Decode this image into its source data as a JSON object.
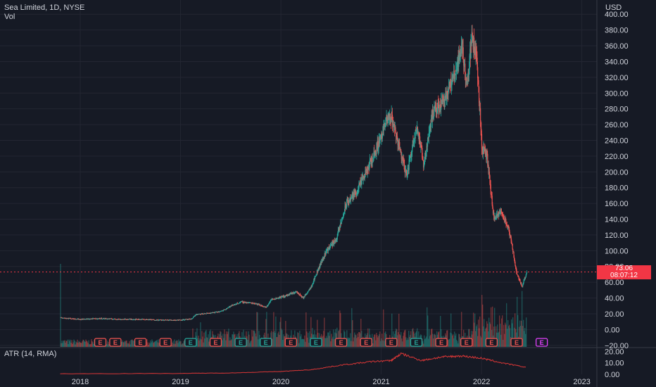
{
  "header": {
    "symbol_line": "Sea Limited, 1D, NYSE",
    "volume_label": "Vol",
    "currency": "USD"
  },
  "price_tag": {
    "price": "73.06",
    "countdown": "08:07:12",
    "color": "#f23645"
  },
  "colors": {
    "background": "#161a25",
    "grid": "#232632",
    "up": "#26a69a",
    "down": "#ef5350",
    "atr_line": "#d93636",
    "text": "#b2b5be"
  },
  "atr": {
    "label": "ATR (14, RMA)",
    "y_ticks": [
      "20.00",
      "10.00",
      "0.00"
    ]
  },
  "earnings_markers": {
    "label": "E",
    "x_dates": [
      2018.2,
      2018.35,
      2018.6,
      2018.85,
      2019.1,
      2019.35,
      2019.6,
      2019.85,
      2020.1,
      2020.35,
      2020.6,
      2020.85,
      2021.1,
      2021.35,
      2021.6,
      2021.85,
      2022.1,
      2022.35,
      2022.6
    ],
    "up_flags": [
      false,
      false,
      false,
      false,
      true,
      false,
      true,
      true,
      false,
      true,
      false,
      false,
      false,
      true,
      false,
      false,
      false,
      false,
      true
    ],
    "future_index": 18
  },
  "chart_data": [
    {
      "type": "candlestick",
      "title": "Sea Limited, 1D, NYSE",
      "ylabel": "USD",
      "x_ticks": [
        "2018",
        "2019",
        "2020",
        "2021",
        "2022",
        "2023"
      ],
      "x_tick_values": [
        2018,
        2019,
        2020,
        2021,
        2022,
        2023
      ],
      "y_ticks": [
        "400.00",
        "380.00",
        "360.00",
        "340.00",
        "320.00",
        "300.00",
        "280.00",
        "260.00",
        "240.00",
        "220.00",
        "200.00",
        "180.00",
        "160.00",
        "140.00",
        "120.00",
        "100.00",
        "80.00",
        "60.00",
        "40.00",
        "20.00",
        "0.00",
        "−20.00"
      ],
      "y_tick_values": [
        400,
        380,
        360,
        340,
        320,
        300,
        280,
        260,
        240,
        220,
        200,
        180,
        160,
        140,
        120,
        100,
        80,
        60,
        40,
        20,
        0,
        -20
      ],
      "ylim": [
        -22,
        402
      ],
      "xlim": [
        2017.2,
        2023.15
      ],
      "last_price": 73.06,
      "price_path": [
        [
          2017.8,
          15
        ],
        [
          2017.9,
          14
        ],
        [
          2018.0,
          13
        ],
        [
          2018.2,
          14
        ],
        [
          2018.4,
          13
        ],
        [
          2018.6,
          13
        ],
        [
          2018.8,
          12
        ],
        [
          2018.95,
          12
        ],
        [
          2019.1,
          13
        ],
        [
          2019.15,
          19
        ],
        [
          2019.3,
          21
        ],
        [
          2019.4,
          23
        ],
        [
          2019.5,
          30
        ],
        [
          2019.6,
          35
        ],
        [
          2019.75,
          33
        ],
        [
          2019.85,
          28
        ],
        [
          2019.9,
          38
        ],
        [
          2020.05,
          43
        ],
        [
          2020.15,
          48
        ],
        [
          2020.22,
          40
        ],
        [
          2020.3,
          55
        ],
        [
          2020.38,
          80
        ],
        [
          2020.45,
          100
        ],
        [
          2020.55,
          115
        ],
        [
          2020.65,
          160
        ],
        [
          2020.75,
          175
        ],
        [
          2020.85,
          200
        ],
        [
          2020.95,
          230
        ],
        [
          2021.05,
          265
        ],
        [
          2021.1,
          270
        ],
        [
          2021.15,
          245
        ],
        [
          2021.25,
          195
        ],
        [
          2021.35,
          260
        ],
        [
          2021.42,
          210
        ],
        [
          2021.5,
          270
        ],
        [
          2021.58,
          285
        ],
        [
          2021.65,
          300
        ],
        [
          2021.72,
          320
        ],
        [
          2021.8,
          360
        ],
        [
          2021.85,
          310
        ],
        [
          2021.9,
          370
        ],
        [
          2021.95,
          345
        ],
        [
          2022.0,
          230
        ],
        [
          2022.05,
          220
        ],
        [
          2022.12,
          140
        ],
        [
          2022.2,
          150
        ],
        [
          2022.28,
          120
        ],
        [
          2022.35,
          70
        ],
        [
          2022.4,
          55
        ],
        [
          2022.45,
          73
        ]
      ],
      "volume": {
        "x_start": 2017.8,
        "x_end": 2022.45,
        "baseline": "low",
        "max_spike_year": 2017.8
      }
    },
    {
      "type": "line",
      "title": "ATR (14, RMA)",
      "ylim": [
        0,
        22
      ],
      "y_ticks": [
        20,
        10,
        0
      ],
      "x": [
        2017.8,
        2019.0,
        2019.5,
        2020.0,
        2020.3,
        2020.6,
        2020.9,
        2021.1,
        2021.2,
        2021.4,
        2021.6,
        2021.8,
        2022.0,
        2022.2,
        2022.45
      ],
      "values": [
        0.5,
        0.8,
        1.2,
        2.5,
        4,
        8,
        11,
        12,
        18,
        12,
        15,
        16,
        14,
        10,
        6
      ]
    }
  ]
}
